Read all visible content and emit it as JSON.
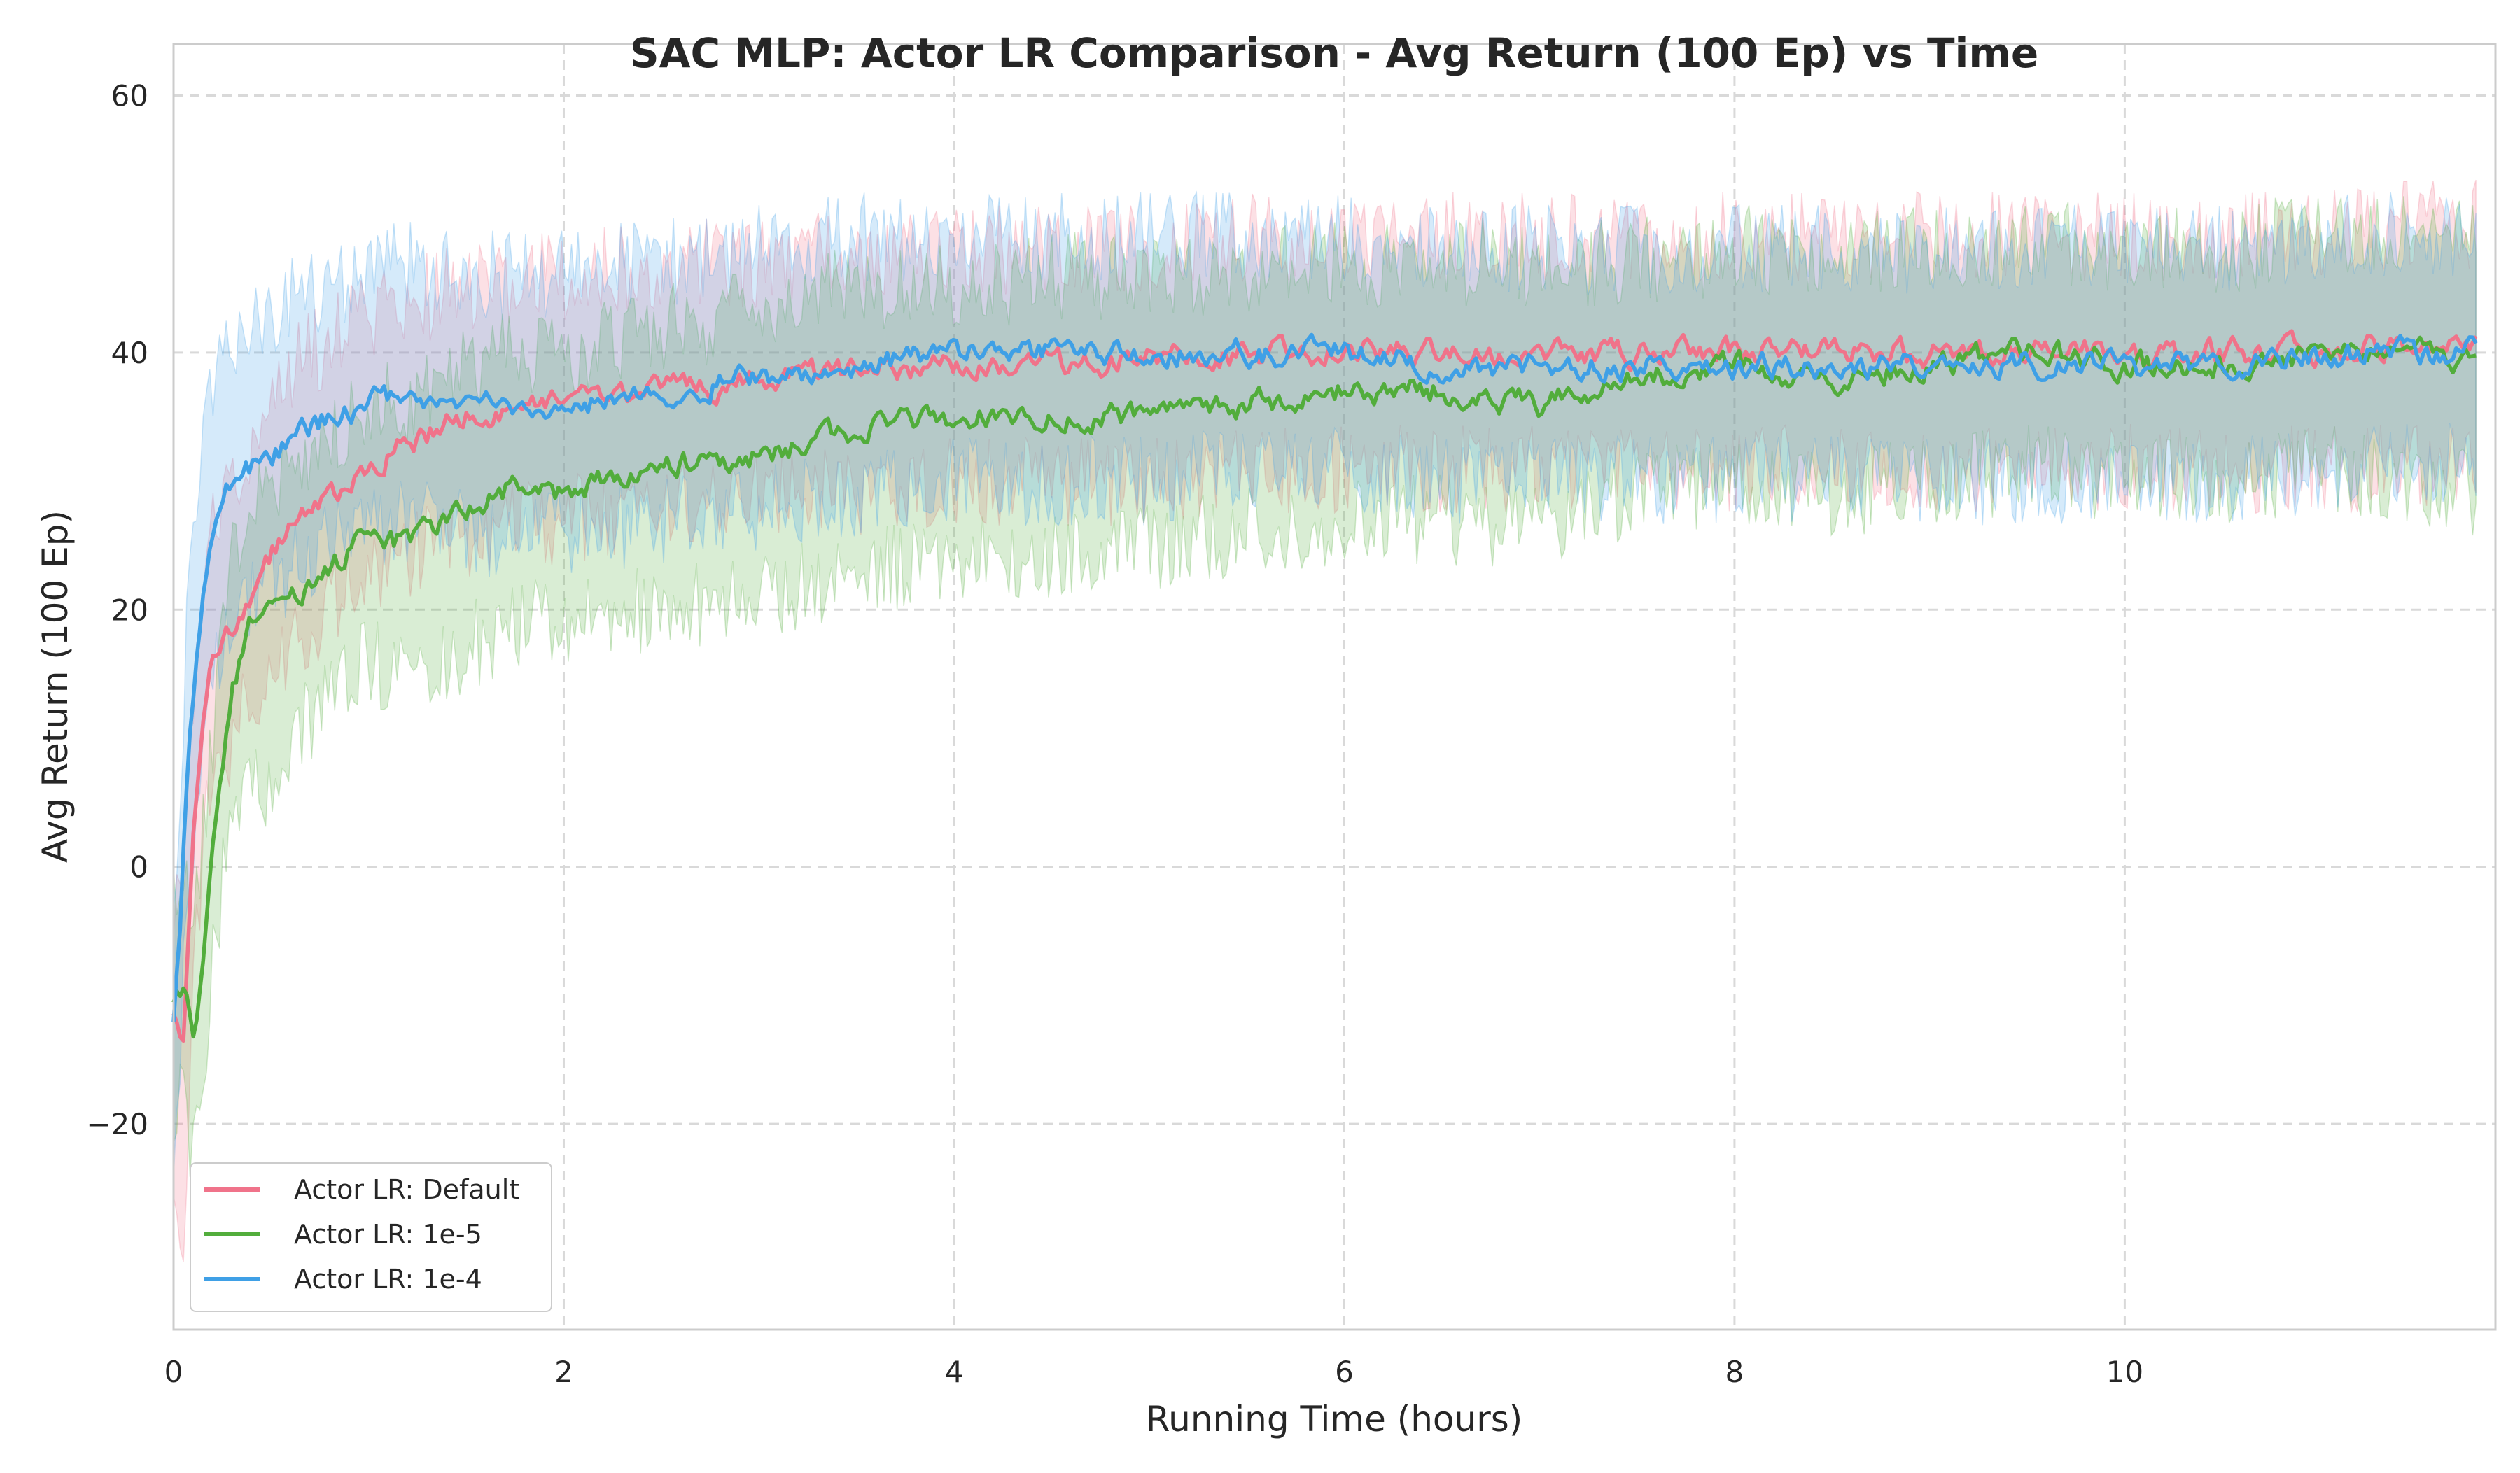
{
  "chart_data": {
    "type": "line",
    "title": "SAC MLP: Actor LR Comparison - Avg Return (100 Ep) vs Time",
    "xlabel": "Running Time (hours)",
    "ylabel": "Avg Return (100 Ep)",
    "xlim": [
      0,
      11.9
    ],
    "ylim": [
      -36,
      64
    ],
    "xticks": [
      0,
      2,
      4,
      6,
      8,
      10
    ],
    "yticks": [
      -20,
      0,
      20,
      40,
      60
    ],
    "xtick_labels": [
      "0",
      "2",
      "4",
      "6",
      "8",
      "10"
    ],
    "ytick_labels": [
      "−20",
      "0",
      "20",
      "40",
      "60"
    ],
    "grid": true,
    "legend_position": "lower-left",
    "shaded_band": "variability band around each series",
    "series": [
      {
        "name": "Actor LR: Default",
        "color": "#f0738a",
        "x": [
          0,
          0.05,
          0.1,
          0.15,
          0.2,
          0.3,
          0.4,
          0.5,
          0.6,
          0.8,
          1.0,
          1.2,
          1.5,
          1.8,
          2.0,
          2.5,
          3.0,
          3.5,
          4.0,
          4.5,
          5.0,
          5.5,
          6.0,
          6.5,
          7.0,
          7.5,
          8.0,
          8.5,
          9.0,
          9.5,
          10.0,
          10.5,
          11.0,
          11.5,
          11.8
        ],
        "y": [
          -12,
          -13,
          2,
          12,
          16,
          19,
          21,
          24,
          27,
          29,
          31,
          33,
          35,
          36,
          36,
          37,
          38,
          38.5,
          39,
          39,
          39.5,
          40,
          40,
          40,
          40,
          40,
          40,
          40,
          40,
          40,
          40,
          40,
          40,
          40.5,
          41
        ],
        "band_upper": [
          -4,
          0,
          12,
          22,
          26,
          30,
          33,
          36,
          39,
          41,
          43,
          44,
          45,
          46,
          46,
          47,
          47,
          48,
          48,
          48,
          48,
          49,
          49,
          49,
          49,
          49,
          49,
          49,
          49,
          49,
          49,
          49,
          49,
          50,
          50
        ],
        "band_lower": [
          -28,
          -30,
          -10,
          2,
          7,
          10,
          13,
          15,
          18,
          20,
          22,
          24,
          26,
          27,
          27,
          28,
          29,
          29,
          30,
          30,
          30,
          31,
          31,
          31,
          31,
          31,
          31,
          31,
          31,
          31,
          31,
          31,
          31,
          31,
          32
        ]
      },
      {
        "name": "Actor LR: 1e-5",
        "color": "#52ad3c",
        "x": [
          0,
          0.05,
          0.1,
          0.15,
          0.2,
          0.3,
          0.4,
          0.5,
          0.6,
          0.8,
          1.0,
          1.2,
          1.5,
          1.8,
          2.0,
          2.5,
          3.0,
          3.5,
          4.0,
          4.5,
          5.0,
          5.5,
          6.0,
          6.5,
          7.0,
          7.5,
          8.0,
          8.5,
          9.0,
          9.5,
          10.0,
          10.5,
          11.0,
          11.5,
          11.8
        ],
        "y": [
          -10,
          -9,
          -13,
          -8,
          1,
          14,
          19,
          20,
          21,
          23,
          26,
          25,
          28,
          30,
          29,
          31,
          32,
          34,
          35,
          35,
          35,
          36,
          37,
          37,
          36,
          38,
          39,
          38,
          39,
          40,
          39,
          39,
          40,
          40,
          39
        ],
        "band_upper": [
          -2,
          0,
          -4,
          2,
          10,
          24,
          28,
          30,
          31,
          33,
          36,
          36,
          39,
          40,
          40,
          42,
          43,
          45,
          45,
          46,
          46,
          46,
          47,
          47,
          47,
          47,
          48,
          48,
          48,
          49,
          48,
          48,
          49,
          50,
          48
        ],
        "band_lower": [
          -20,
          -18,
          -22,
          -16,
          -8,
          5,
          8,
          6,
          10,
          13,
          16,
          15,
          17,
          19,
          19,
          20,
          21,
          23,
          24,
          24,
          25,
          26,
          27,
          27,
          26,
          29,
          30,
          29,
          30,
          31,
          30,
          30,
          31,
          30,
          29
        ]
      },
      {
        "name": "Actor LR: 1e-4",
        "color": "#3fa0e6",
        "x": [
          0,
          0.03,
          0.06,
          0.1,
          0.15,
          0.2,
          0.3,
          0.4,
          0.5,
          0.6,
          0.8,
          1.0,
          1.2,
          1.5,
          1.8,
          2.0,
          2.5,
          3.0,
          3.5,
          4.0,
          4.5,
          5.0,
          5.5,
          6.0,
          6.5,
          7.0,
          7.5,
          8.0,
          8.5,
          9.0,
          9.5,
          10.0,
          10.5,
          11.0,
          11.5,
          11.8
        ],
        "y": [
          -12,
          -6,
          5,
          13,
          20,
          26,
          30,
          31,
          32,
          33,
          35,
          36,
          37,
          36,
          36,
          36,
          37,
          38,
          39,
          40,
          40,
          40,
          40,
          40,
          39,
          39,
          39,
          39,
          39,
          39,
          39,
          39,
          39,
          40,
          40,
          40
        ],
        "band_upper": [
          -2,
          4,
          16,
          24,
          32,
          38,
          41,
          42,
          43,
          44,
          45,
          46,
          47,
          46,
          46,
          46,
          47,
          48,
          49,
          49,
          49,
          49,
          49,
          49,
          48,
          48,
          48,
          48,
          48,
          48,
          48,
          48,
          48,
          49,
          49,
          49
        ],
        "band_lower": [
          -22,
          -16,
          -6,
          2,
          9,
          15,
          20,
          21,
          22,
          23,
          25,
          26,
          27,
          26,
          26,
          26,
          27,
          28,
          29,
          30,
          30,
          30,
          31,
          31,
          30,
          30,
          30,
          30,
          30,
          30,
          30,
          30,
          30,
          31,
          31,
          31
        ]
      }
    ]
  }
}
